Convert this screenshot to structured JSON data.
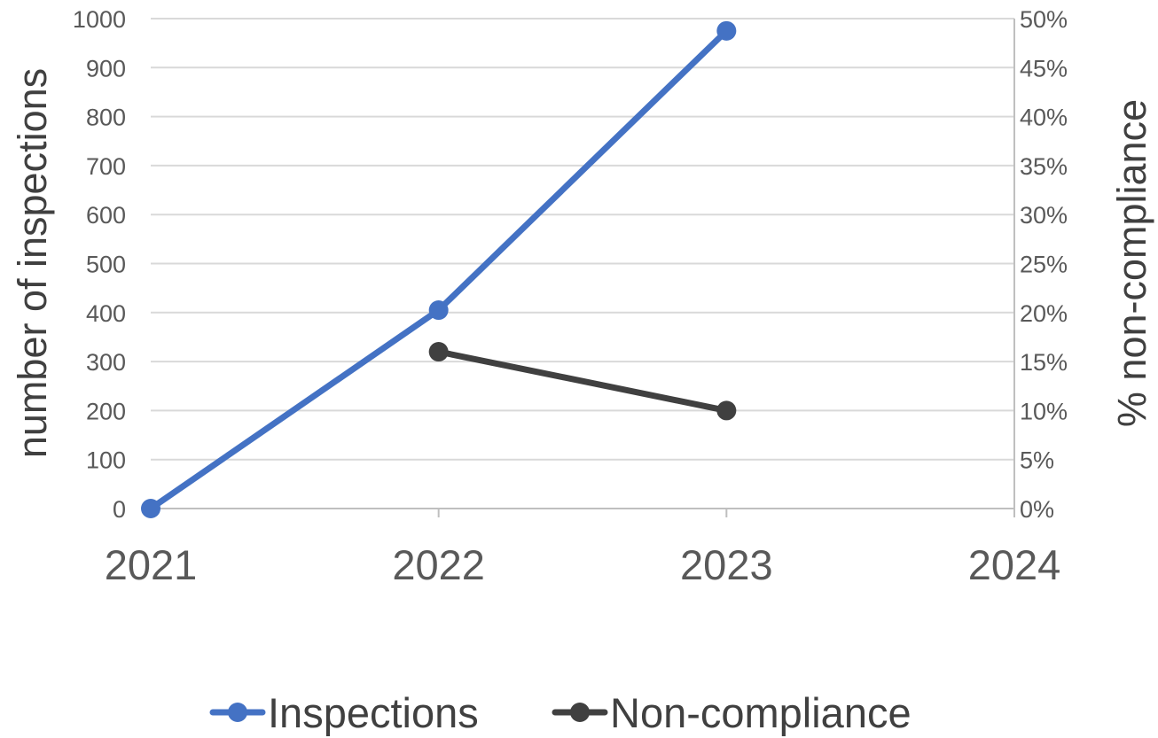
{
  "chart_data": {
    "type": "line",
    "x": [
      "2021",
      "2022",
      "2023",
      "2024"
    ],
    "y_left": {
      "label": "number of inspections",
      "ylim": [
        0,
        1000
      ],
      "ticks": [
        0,
        100,
        200,
        300,
        400,
        500,
        600,
        700,
        800,
        900,
        1000
      ]
    },
    "y_right": {
      "label": "% non-compliance",
      "ylim": [
        0,
        50
      ],
      "ticks": [
        0,
        5,
        10,
        15,
        20,
        25,
        30,
        35,
        40,
        45,
        50
      ],
      "tick_suffix": "%"
    },
    "series": [
      {
        "name": "Inspections",
        "axis": "left",
        "color": "#4472C4",
        "values": [
          0,
          405,
          975,
          null
        ]
      },
      {
        "name": "Non-compliance",
        "axis": "right",
        "color": "#404040",
        "values": [
          null,
          16,
          10,
          null
        ]
      }
    ],
    "grid": true,
    "legend_position": "bottom"
  }
}
